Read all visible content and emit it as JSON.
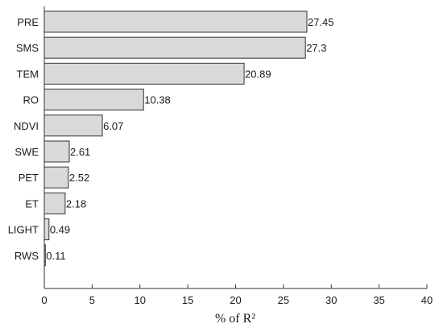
{
  "chart_data": {
    "type": "bar",
    "orientation": "horizontal",
    "categories": [
      "PRE",
      "SMS",
      "TEM",
      "RO",
      "NDVI",
      "SWE",
      "PET",
      "ET",
      "LIGHT",
      "RWS"
    ],
    "values": [
      27.45,
      27.3,
      20.89,
      10.38,
      6.07,
      2.61,
      2.52,
      2.18,
      0.49,
      0.11
    ],
    "value_labels": [
      "27.45",
      "27.3",
      "20.89",
      "10.38",
      "6.07",
      "2.61",
      "2.52",
      "2.18",
      "0.49",
      "0.11"
    ],
    "xlabel": "% of R²",
    "ylabel": "",
    "title": "",
    "xlim": [
      0,
      40
    ],
    "xticks": [
      0,
      5,
      10,
      15,
      20,
      25,
      30,
      35,
      40
    ],
    "grid": false,
    "legend": "none",
    "colors": {
      "bar_fill": "#d9d9d9",
      "bar_stroke": "#333333",
      "text": "#1a1a1a"
    }
  }
}
